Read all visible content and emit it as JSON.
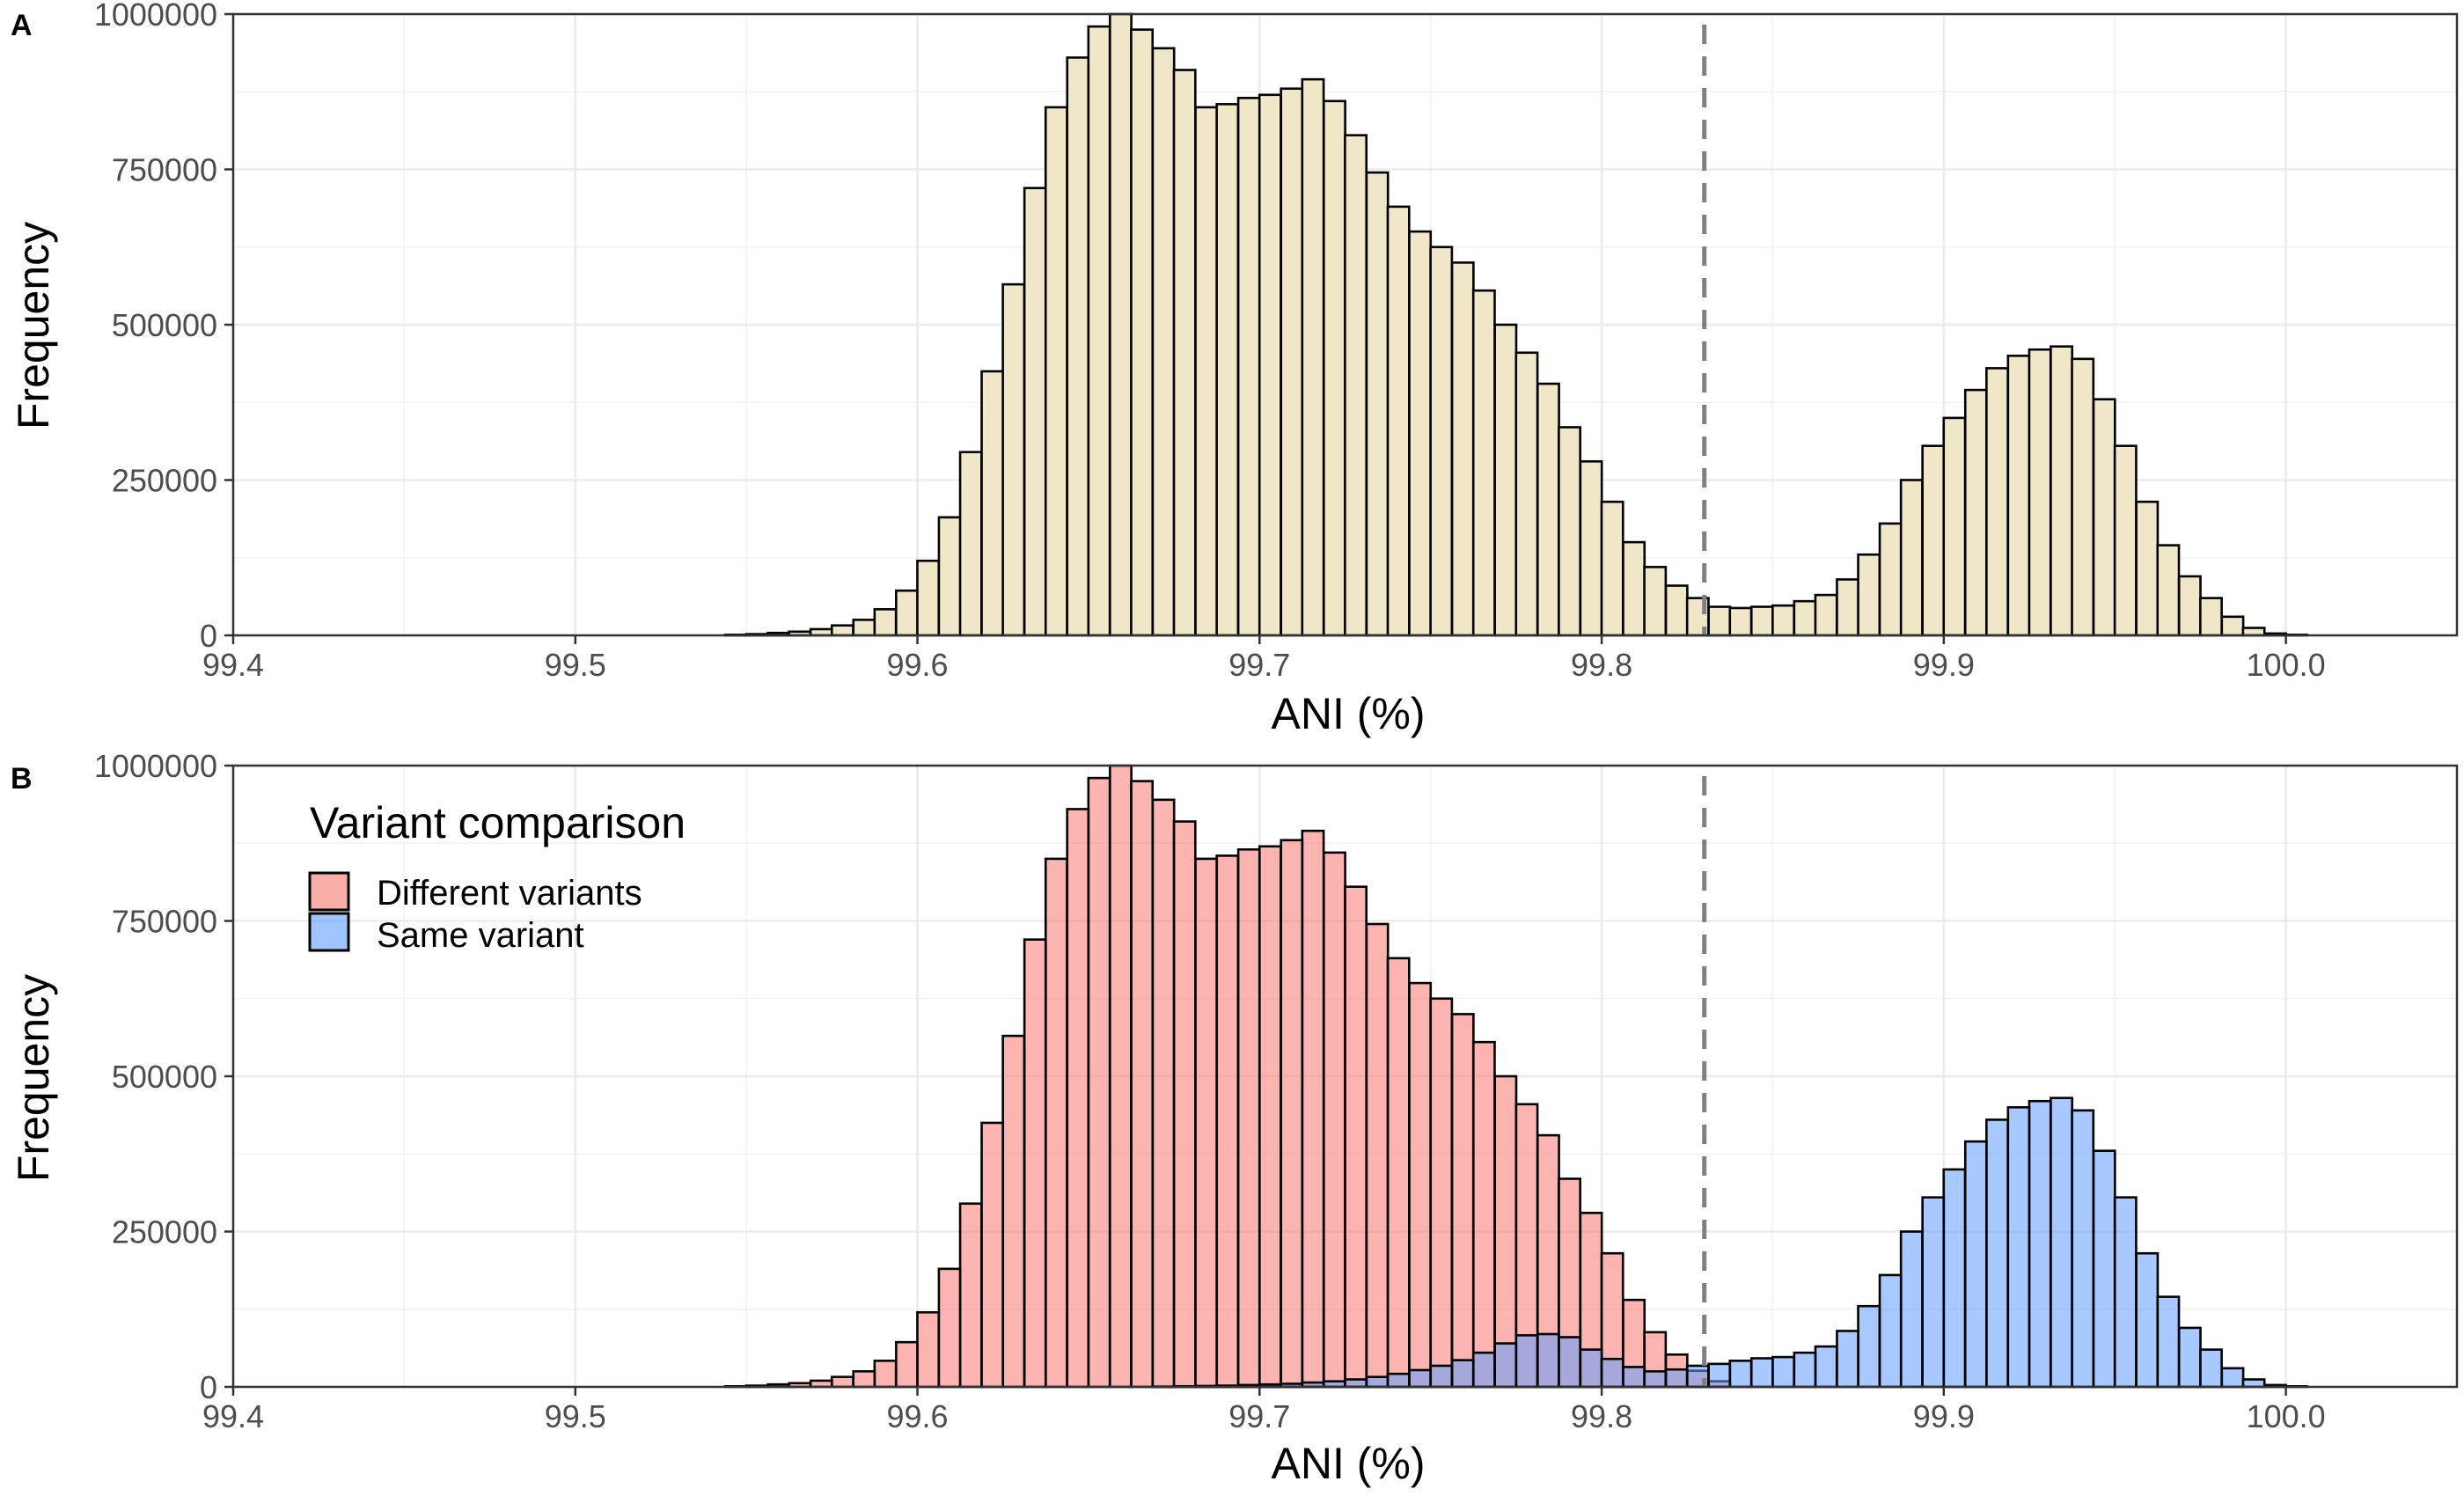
{
  "chart_data": [
    {
      "panel": "A",
      "type": "bar",
      "xlabel": "ANI (%)",
      "ylabel": "Frequency",
      "xlim": [
        99.4,
        100.05
      ],
      "ylim": [
        0,
        1000000
      ],
      "x_ticks": [
        "99.4",
        "99.5",
        "99.6",
        "99.7",
        "99.8",
        "99.9",
        "100.0"
      ],
      "x_tick_values": [
        99.4,
        99.5,
        99.6,
        99.7,
        99.8,
        99.9,
        100.0
      ],
      "y_ticks": [
        "0",
        "250000",
        "500000",
        "750000",
        "1000000"
      ],
      "y_tick_values": [
        0,
        250000,
        500000,
        750000,
        1000000
      ],
      "grid": true,
      "vline": {
        "x": 99.83,
        "style": "dashed",
        "color": "#808080"
      },
      "bin_width": 0.00625,
      "series": [
        {
          "color": "#f0e6c8",
          "x": [
            99.5469,
            99.5531,
            99.5594,
            99.5656,
            99.5719,
            99.5781,
            99.5844,
            99.5906,
            99.5969,
            99.6031,
            99.6094,
            99.6156,
            99.6219,
            99.6281,
            99.6344,
            99.6406,
            99.6469,
            99.6531,
            99.6594,
            99.6656,
            99.6719,
            99.6781,
            99.6844,
            99.6906,
            99.6969,
            99.7031,
            99.7094,
            99.7156,
            99.7219,
            99.7281,
            99.7344,
            99.7406,
            99.7469,
            99.7531,
            99.7594,
            99.7656,
            99.7719,
            99.7781,
            99.7844,
            99.7906,
            99.7969,
            99.8031,
            99.8094,
            99.8156,
            99.8219,
            99.8281,
            99.8344,
            99.8406,
            99.8469,
            99.8531,
            99.8594,
            99.8656,
            99.8719,
            99.8781,
            99.8844,
            99.8906,
            99.8969,
            99.9031,
            99.9094,
            99.9156,
            99.9219,
            99.9281,
            99.9344,
            99.9406,
            99.9469,
            99.9531,
            99.9594,
            99.9656,
            99.9719,
            99.9781,
            99.9844,
            99.9906,
            99.9969,
            100.0031
          ],
          "values": [
            1000,
            2000,
            4000,
            6000,
            10000,
            16000,
            25000,
            42000,
            72000,
            120000,
            190000,
            295000,
            425000,
            565000,
            720000,
            850000,
            930000,
            980000,
            1000000,
            975000,
            945000,
            910000,
            850000,
            855000,
            865000,
            870000,
            880000,
            895000,
            860000,
            805000,
            745000,
            690000,
            650000,
            625000,
            600000,
            555000,
            500000,
            455000,
            405000,
            335000,
            280000,
            215000,
            150000,
            110000,
            80000,
            60000,
            46000,
            44000,
            46000,
            48000,
            55000,
            65000,
            90000,
            130000,
            180000,
            250000,
            305000,
            350000,
            395000,
            430000,
            450000,
            460000,
            465000,
            445000,
            380000,
            305000,
            215000,
            145000,
            95000,
            60000,
            30000,
            12000,
            3000,
            1000
          ]
        }
      ]
    },
    {
      "panel": "B",
      "type": "bar",
      "xlabel": "ANI (%)",
      "ylabel": "Frequency",
      "xlim": [
        99.4,
        100.05
      ],
      "ylim": [
        0,
        1000000
      ],
      "x_ticks": [
        "99.4",
        "99.5",
        "99.6",
        "99.7",
        "99.8",
        "99.9",
        "100.0"
      ],
      "x_tick_values": [
        99.4,
        99.5,
        99.6,
        99.7,
        99.8,
        99.9,
        100.0
      ],
      "y_ticks": [
        "0",
        "250000",
        "500000",
        "750000",
        "1000000"
      ],
      "y_tick_values": [
        0,
        250000,
        500000,
        750000,
        1000000
      ],
      "grid": true,
      "vline": {
        "x": 99.83,
        "style": "dashed",
        "color": "#808080"
      },
      "bin_width": 0.00625,
      "legend": {
        "title": "Variant comparison",
        "position": "top-left",
        "entries": [
          "Different variants",
          "Same variant"
        ]
      },
      "series": [
        {
          "name": "Different variants",
          "color": "#f8766d",
          "x": [
            99.5469,
            99.5531,
            99.5594,
            99.5656,
            99.5719,
            99.5781,
            99.5844,
            99.5906,
            99.5969,
            99.6031,
            99.6094,
            99.6156,
            99.6219,
            99.6281,
            99.6344,
            99.6406,
            99.6469,
            99.6531,
            99.6594,
            99.6656,
            99.6719,
            99.6781,
            99.6844,
            99.6906,
            99.6969,
            99.7031,
            99.7094,
            99.7156,
            99.7219,
            99.7281,
            99.7344,
            99.7406,
            99.7469,
            99.7531,
            99.7594,
            99.7656,
            99.7719,
            99.7781,
            99.7844,
            99.7906,
            99.7969,
            99.8031,
            99.8094,
            99.8156,
            99.8219,
            99.8281,
            99.8344
          ],
          "values": [
            1000,
            2000,
            4000,
            6000,
            10000,
            16000,
            25000,
            42000,
            72000,
            120000,
            190000,
            295000,
            425000,
            565000,
            720000,
            850000,
            930000,
            980000,
            1000000,
            975000,
            945000,
            910000,
            850000,
            855000,
            865000,
            870000,
            880000,
            895000,
            860000,
            805000,
            745000,
            690000,
            650000,
            625000,
            600000,
            555000,
            500000,
            455000,
            405000,
            335000,
            280000,
            215000,
            140000,
            88000,
            52000,
            26000,
            9000
          ]
        },
        {
          "name": "Same variant",
          "color": "#619cff",
          "x": [
            99.6719,
            99.6781,
            99.6844,
            99.6906,
            99.6969,
            99.7031,
            99.7094,
            99.7156,
            99.7219,
            99.7281,
            99.7344,
            99.7406,
            99.7469,
            99.7531,
            99.7594,
            99.7656,
            99.7719,
            99.7781,
            99.7844,
            99.7906,
            99.7969,
            99.8031,
            99.8094,
            99.8156,
            99.8219,
            99.8281,
            99.8344,
            99.8406,
            99.8469,
            99.8531,
            99.8594,
            99.8656,
            99.8719,
            99.8781,
            99.8844,
            99.8906,
            99.8969,
            99.9031,
            99.9094,
            99.9156,
            99.9219,
            99.9281,
            99.9344,
            99.9406,
            99.9469,
            99.9531,
            99.9594,
            99.9656,
            99.9719,
            99.9781,
            99.9844,
            99.9906,
            99.9969,
            100.0031
          ],
          "values": [
            500,
            1000,
            1500,
            2000,
            3000,
            4000,
            5000,
            7000,
            9000,
            12000,
            16000,
            21000,
            27000,
            34000,
            43000,
            55000,
            70000,
            83000,
            85000,
            80000,
            60000,
            45000,
            32000,
            25000,
            28000,
            34000,
            37000,
            42000,
            46000,
            48000,
            55000,
            65000,
            90000,
            130000,
            180000,
            250000,
            305000,
            350000,
            395000,
            430000,
            450000,
            460000,
            465000,
            445000,
            380000,
            305000,
            215000,
            145000,
            95000,
            60000,
            30000,
            12000,
            3000,
            1000
          ]
        }
      ]
    }
  ]
}
